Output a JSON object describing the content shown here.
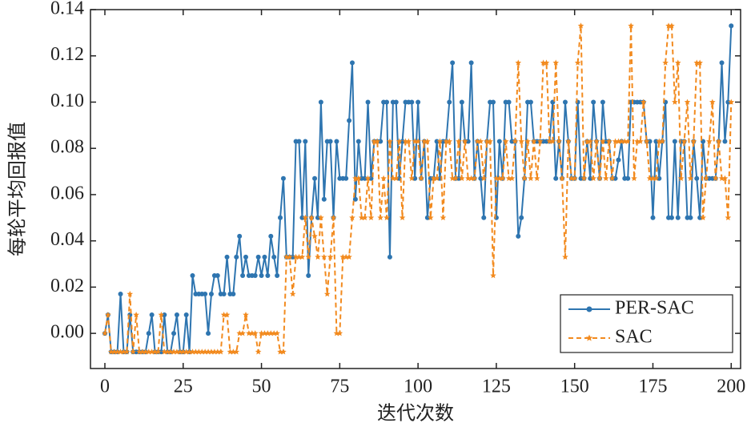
{
  "chart_data": {
    "type": "line",
    "xlabel": "迭代次数",
    "ylabel": "每轮平均回报值",
    "x": [
      0,
      1,
      2,
      3,
      4,
      5,
      6,
      7,
      8,
      9,
      10,
      11,
      12,
      13,
      14,
      15,
      16,
      17,
      18,
      19,
      20,
      21,
      22,
      23,
      24,
      25,
      26,
      27,
      28,
      29,
      30,
      31,
      32,
      33,
      34,
      35,
      36,
      37,
      38,
      39,
      40,
      41,
      42,
      43,
      44,
      45,
      46,
      47,
      48,
      49,
      50,
      51,
      52,
      53,
      54,
      55,
      56,
      57,
      58,
      59,
      60,
      61,
      62,
      63,
      64,
      65,
      66,
      67,
      68,
      69,
      70,
      71,
      72,
      73,
      74,
      75,
      76,
      77,
      78,
      79,
      80,
      81,
      82,
      83,
      84,
      85,
      86,
      87,
      88,
      89,
      90,
      91,
      92,
      93,
      94,
      95,
      96,
      97,
      98,
      99,
      100,
      101,
      102,
      103,
      104,
      105,
      106,
      107,
      108,
      109,
      110,
      111,
      112,
      113,
      114,
      115,
      116,
      117,
      118,
      119,
      120,
      121,
      122,
      123,
      124,
      125,
      126,
      127,
      128,
      129,
      130,
      131,
      132,
      133,
      134,
      135,
      136,
      137,
      138,
      139,
      140,
      141,
      142,
      143,
      144,
      145,
      146,
      147,
      148,
      149,
      150,
      151,
      152,
      153,
      154,
      155,
      156,
      157,
      158,
      159,
      160,
      161,
      162,
      163,
      164,
      165,
      166,
      167,
      168,
      169,
      170,
      171,
      172,
      173,
      174,
      175,
      176,
      177,
      178,
      179,
      180,
      181,
      182,
      183,
      184,
      185,
      186,
      187,
      188,
      189,
      190,
      191,
      192,
      193,
      194,
      195,
      196,
      197,
      198,
      199,
      200
    ],
    "series": [
      {
        "name": "PER-SAC",
        "color": "#2e75b0",
        "marker": "circle",
        "dash": false,
        "values": [
          0,
          0.008,
          -0.008,
          -0.008,
          -0.008,
          0.017,
          -0.008,
          -0.008,
          0.008,
          -0.008,
          -0.008,
          -0.008,
          -0.008,
          -0.008,
          0,
          0.008,
          -0.008,
          -0.008,
          -0.008,
          0.008,
          -0.008,
          -0.008,
          0,
          0.008,
          -0.008,
          -0.008,
          0.008,
          -0.008,
          0.025,
          0.017,
          0.017,
          0.017,
          0.017,
          0,
          0.017,
          0.025,
          0.025,
          0.017,
          0.017,
          0.033,
          0.017,
          0.017,
          0.033,
          0.042,
          0.025,
          0.033,
          0.025,
          0.025,
          0.025,
          0.033,
          0.025,
          0.033,
          0.025,
          0.042,
          0.033,
          0.025,
          0.05,
          0.067,
          0.033,
          0.033,
          0.033,
          0.083,
          0.083,
          0.05,
          0.083,
          0.025,
          0.05,
          0.067,
          0.05,
          0.1,
          0.058,
          0.083,
          0.083,
          0.05,
          0.083,
          0.067,
          0.067,
          0.067,
          0.092,
          0.117,
          0.058,
          0.083,
          0.067,
          0.067,
          0.1,
          0.067,
          0.083,
          0.083,
          0.083,
          0.1,
          0.1,
          0.033,
          0.1,
          0.1,
          0.067,
          0.083,
          0.1,
          0.1,
          0.1,
          0.067,
          0.1,
          0.067,
          0.083,
          0.05,
          0.067,
          0.067,
          0.083,
          0.067,
          0.083,
          0.083,
          0.1,
          0.117,
          0.067,
          0.067,
          0.1,
          0.083,
          0.083,
          0.117,
          0.067,
          0.083,
          0.067,
          0.05,
          0.083,
          0.1,
          0.1,
          0.05,
          0.083,
          0.067,
          0.1,
          0.1,
          0.083,
          0.083,
          0.042,
          0.05,
          0.067,
          0.1,
          0.1,
          0.083,
          0.083,
          0.083,
          0.083,
          0.083,
          0.083,
          0.1,
          0.067,
          0.083,
          0.067,
          0.1,
          0.083,
          0.067,
          0.067,
          0.1,
          0.067,
          0.067,
          0.083,
          0.067,
          0.1,
          0.083,
          0.067,
          0.1,
          0.083,
          0.083,
          0.067,
          0.067,
          0.075,
          0.083,
          0.067,
          0.067,
          0.1,
          0.1,
          0.1,
          0.1,
          0.1,
          0.083,
          0.083,
          0.05,
          0.083,
          0.067,
          0.083,
          0.1,
          0.05,
          0.05,
          0.083,
          0.05,
          0.083,
          0.083,
          0.05,
          0.05,
          0.083,
          0.067,
          0.05,
          0.083,
          0.067,
          0.067,
          0.067,
          0.067,
          0.083,
          0.117,
          0.083,
          0.1,
          0.133
        ]
      },
      {
        "name": "SAC",
        "color": "#f28a1e",
        "marker": "star",
        "dash": true,
        "values": [
          0,
          0.008,
          -0.008,
          -0.008,
          -0.008,
          -0.008,
          -0.008,
          -0.008,
          0.017,
          -0.008,
          0.008,
          -0.008,
          -0.008,
          -0.008,
          -0.008,
          -0.008,
          -0.008,
          -0.008,
          0.008,
          -0.008,
          -0.008,
          -0.008,
          -0.008,
          -0.008,
          -0.008,
          -0.008,
          -0.008,
          -0.008,
          -0.008,
          -0.008,
          -0.008,
          -0.008,
          -0.008,
          -0.008,
          -0.008,
          -0.008,
          -0.008,
          -0.008,
          0.008,
          0.008,
          -0.008,
          -0.008,
          -0.008,
          0,
          0,
          0.008,
          0,
          0,
          0,
          -0.008,
          0,
          0,
          0,
          0,
          0,
          0,
          -0.008,
          -0.008,
          0.033,
          0.033,
          0.017,
          0.033,
          0.033,
          0.033,
          0.05,
          0.033,
          0.05,
          0.042,
          0.033,
          0.05,
          0.033,
          0.017,
          0.033,
          0.05,
          0,
          0,
          0.033,
          0.033,
          0.033,
          0.05,
          0.067,
          0.067,
          0.05,
          0.05,
          0.067,
          0.05,
          0.083,
          0.083,
          0.05,
          0.067,
          0.05,
          0.083,
          0.067,
          0.067,
          0.083,
          0.05,
          0.083,
          0.083,
          0.067,
          0.083,
          0.083,
          0.067,
          0.083,
          0.083,
          0.05,
          0.067,
          0.067,
          0.083,
          0.05,
          0.083,
          0.083,
          0.067,
          0.067,
          0.083,
          0.067,
          0.083,
          0.067,
          0.067,
          0.067,
          0.083,
          0.083,
          0.067,
          0.083,
          0.083,
          0.025,
          0.067,
          0.067,
          0.067,
          0.083,
          0.067,
          0.067,
          0.083,
          0.117,
          0.083,
          0.067,
          0.083,
          0.067,
          0.083,
          0.067,
          0.083,
          0.117,
          0.117,
          0.083,
          0.083,
          0.117,
          0.083,
          0.067,
          0.033,
          0.083,
          0.067,
          0.067,
          0.117,
          0.133,
          0.067,
          0.083,
          0.083,
          0.067,
          0.083,
          0.067,
          0.083,
          0.067,
          0.083,
          0.067,
          0.083,
          0.083,
          0.083,
          0.083,
          0.083,
          0.133,
          0.067,
          0.083,
          0.083,
          0.1,
          0.083,
          0.067,
          0.067,
          0.067,
          0.083,
          0.083,
          0.117,
          0.133,
          0.133,
          0.1,
          0.117,
          0.067,
          0.083,
          0.1,
          0.067,
          0.083,
          0.117,
          0.117,
          0.05,
          0.067,
          0.083,
          0.1,
          0.067,
          0.083,
          0.067,
          0.067,
          0.05,
          0.1
        ]
      }
    ],
    "xlim": [
      -4.6,
      203
    ],
    "xticks": [
      0,
      25,
      50,
      75,
      100,
      125,
      150,
      175,
      200
    ],
    "ylim": [
      -0.0152,
      0.14
    ],
    "yticks": [
      {
        "value": 0,
        "label": "0.00"
      },
      0.02,
      0.04,
      0.06,
      0.08,
      {
        "value": 0.1,
        "label": "0.10"
      },
      0.12,
      0.14
    ],
    "legend": "lower-right"
  }
}
